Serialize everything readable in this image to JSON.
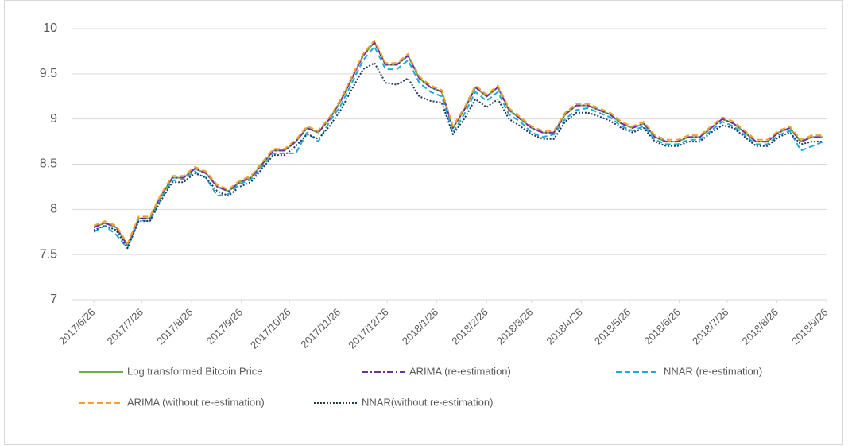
{
  "chart_data": {
    "type": "line",
    "x": [
      "2017/6/26",
      "2017/7/3",
      "2017/7/10",
      "2017/7/17",
      "2017/7/24",
      "2017/7/31",
      "2017/8/7",
      "2017/8/14",
      "2017/8/21",
      "2017/8/28",
      "2017/9/4",
      "2017/9/11",
      "2017/9/18",
      "2017/9/25",
      "2017/10/2",
      "2017/10/9",
      "2017/10/16",
      "2017/10/23",
      "2017/10/30",
      "2017/11/6",
      "2017/11/13",
      "2017/11/20",
      "2017/11/27",
      "2017/12/4",
      "2017/12/11",
      "2017/12/18",
      "2017/12/25",
      "2018/1/1",
      "2018/1/8",
      "2018/1/15",
      "2018/1/22",
      "2018/1/29",
      "2018/2/5",
      "2018/2/12",
      "2018/2/19",
      "2018/2/26",
      "2018/3/5",
      "2018/3/12",
      "2018/3/19",
      "2018/3/26",
      "2018/4/2",
      "2018/4/9",
      "2018/4/16",
      "2018/4/23",
      "2018/4/30",
      "2018/5/7",
      "2018/5/14",
      "2018/5/21",
      "2018/5/28",
      "2018/6/4",
      "2018/6/11",
      "2018/6/18",
      "2018/6/25",
      "2018/7/2",
      "2018/7/9",
      "2018/7/16",
      "2018/7/23",
      "2018/7/30",
      "2018/8/6",
      "2018/8/13",
      "2018/8/20",
      "2018/8/27",
      "2018/9/3",
      "2018/9/10",
      "2018/9/17",
      "2018/9/24"
    ],
    "xlim": [
      "2017/6/26",
      "2018/9/26"
    ],
    "xticks": [
      "2017/6/26",
      "2017/7/26",
      "2017/8/26",
      "2017/9/26",
      "2017/10/26",
      "2017/11/26",
      "2017/12/26",
      "2018/1/26",
      "2018/2/26",
      "2018/3/26",
      "2018/4/26",
      "2018/5/26",
      "2018/6/26",
      "2018/7/26",
      "2018/8/26",
      "2018/9/26"
    ],
    "ylim": [
      7,
      10
    ],
    "yticks": [
      7,
      7.5,
      8,
      8.5,
      9,
      9.5,
      10
    ],
    "grid": true,
    "series": [
      {
        "name": "Log transformed Bitcoin Price",
        "color": "#70ad47",
        "style": "solid",
        "values": [
          7.8,
          7.85,
          7.8,
          7.6,
          7.9,
          7.9,
          8.15,
          8.35,
          8.35,
          8.45,
          8.4,
          8.25,
          8.2,
          8.3,
          8.35,
          8.5,
          8.65,
          8.65,
          8.75,
          8.9,
          8.85,
          9.0,
          9.2,
          9.45,
          9.7,
          9.85,
          9.6,
          9.6,
          9.7,
          9.45,
          9.35,
          9.3,
          8.9,
          9.1,
          9.35,
          9.25,
          9.35,
          9.1,
          9.0,
          8.9,
          8.85,
          8.85,
          9.05,
          9.15,
          9.15,
          9.1,
          9.05,
          8.95,
          8.9,
          8.95,
          8.8,
          8.75,
          8.75,
          8.8,
          8.8,
          8.9,
          9.0,
          8.95,
          8.85,
          8.75,
          8.75,
          8.85,
          8.9,
          8.75,
          8.8,
          8.8
        ]
      },
      {
        "name": "ARIMA (re-estimation)",
        "color": "#7030a0",
        "style": "dashdot",
        "values": [
          7.8,
          7.85,
          7.8,
          7.6,
          7.9,
          7.9,
          8.15,
          8.35,
          8.35,
          8.45,
          8.4,
          8.25,
          8.2,
          8.3,
          8.35,
          8.5,
          8.65,
          8.65,
          8.75,
          8.9,
          8.85,
          9.0,
          9.2,
          9.45,
          9.7,
          9.85,
          9.6,
          9.6,
          9.7,
          9.45,
          9.35,
          9.3,
          8.9,
          9.1,
          9.35,
          9.25,
          9.35,
          9.1,
          9.0,
          8.9,
          8.85,
          8.85,
          9.05,
          9.15,
          9.15,
          9.1,
          9.05,
          8.95,
          8.9,
          8.95,
          8.8,
          8.75,
          8.75,
          8.8,
          8.8,
          8.9,
          9.0,
          8.95,
          8.85,
          8.75,
          8.75,
          8.85,
          8.9,
          8.75,
          8.8,
          8.8
        ]
      },
      {
        "name": "NNAR (re-estimation)",
        "color": "#1fa9d6",
        "style": "dashed",
        "values": [
          7.75,
          7.82,
          7.72,
          7.57,
          7.88,
          7.87,
          8.12,
          8.32,
          8.33,
          8.42,
          8.35,
          8.15,
          8.17,
          8.28,
          8.33,
          8.47,
          8.62,
          8.62,
          8.62,
          8.85,
          8.75,
          8.97,
          9.15,
          9.4,
          9.65,
          9.8,
          9.55,
          9.55,
          9.65,
          9.4,
          9.3,
          9.25,
          8.85,
          9.05,
          9.3,
          9.2,
          9.3,
          9.05,
          8.97,
          8.85,
          8.8,
          8.83,
          9.0,
          9.1,
          9.12,
          9.07,
          9.02,
          8.92,
          8.87,
          8.92,
          8.77,
          8.72,
          8.72,
          8.77,
          8.77,
          8.87,
          8.97,
          8.92,
          8.82,
          8.72,
          8.72,
          8.82,
          8.87,
          8.65,
          8.7,
          8.75
        ]
      },
      {
        "name": "ARIMA (without re-estimation)",
        "color": "#f4a030",
        "style": "dashed",
        "values": [
          7.82,
          7.87,
          7.82,
          7.62,
          7.92,
          7.92,
          8.17,
          8.37,
          8.37,
          8.47,
          8.42,
          8.27,
          8.22,
          8.32,
          8.37,
          8.52,
          8.67,
          8.67,
          8.77,
          8.92,
          8.87,
          9.02,
          9.22,
          9.47,
          9.72,
          9.87,
          9.62,
          9.62,
          9.72,
          9.47,
          9.37,
          9.32,
          8.92,
          9.12,
          9.37,
          9.27,
          9.37,
          9.12,
          9.02,
          8.92,
          8.87,
          8.87,
          9.07,
          9.17,
          9.17,
          9.12,
          9.07,
          8.97,
          8.92,
          8.97,
          8.82,
          8.77,
          8.77,
          8.82,
          8.82,
          8.92,
          9.02,
          8.97,
          8.87,
          8.77,
          8.77,
          8.87,
          8.92,
          8.77,
          8.82,
          8.82
        ]
      },
      {
        "name": "NNAR(without re-estimation)",
        "color": "#1f3864",
        "style": "dotted",
        "values": [
          7.77,
          7.82,
          7.77,
          7.57,
          7.87,
          7.87,
          8.1,
          8.3,
          8.3,
          8.4,
          8.35,
          8.2,
          8.15,
          8.25,
          8.3,
          8.45,
          8.6,
          8.6,
          8.7,
          8.83,
          8.78,
          8.92,
          9.1,
          9.33,
          9.55,
          9.62,
          9.4,
          9.38,
          9.45,
          9.25,
          9.2,
          9.18,
          8.83,
          9.0,
          9.22,
          9.13,
          9.22,
          9.0,
          8.92,
          8.83,
          8.78,
          8.78,
          8.97,
          9.07,
          9.07,
          9.03,
          8.98,
          8.9,
          8.85,
          8.9,
          8.75,
          8.7,
          8.7,
          8.75,
          8.75,
          8.85,
          8.93,
          8.9,
          8.8,
          8.7,
          8.7,
          8.8,
          8.85,
          8.72,
          8.75,
          8.75
        ]
      }
    ]
  }
}
